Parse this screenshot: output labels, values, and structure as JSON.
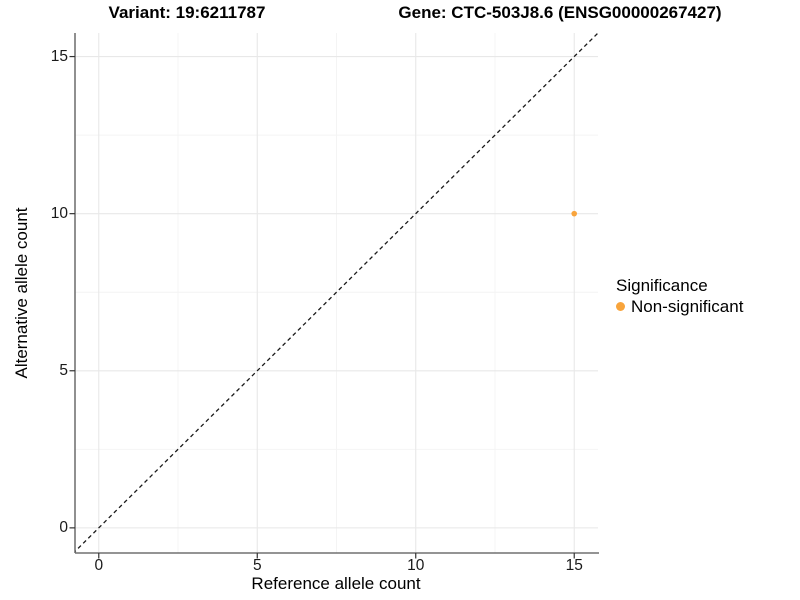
{
  "chart_data": {
    "type": "scatter",
    "titles": [
      "Variant: 19:6211787",
      "Gene: CTC-503J8.6 (ENSG00000267427)"
    ],
    "xlabel": "Reference allele count",
    "ylabel": "Alternative allele count",
    "xticks": [
      0,
      5,
      10,
      15
    ],
    "yticks": [
      0,
      5,
      10,
      15
    ],
    "minor_xticks": [
      2.5,
      7.5,
      12.5
    ],
    "minor_yticks": [
      2.5,
      7.5,
      12.5
    ],
    "xlim": [
      -0.75,
      15.75
    ],
    "ylim": [
      -0.8,
      15.75
    ],
    "grid": true,
    "identity_line": {
      "style": "dashed",
      "slope": 1,
      "intercept": 0,
      "color": "#1a1a1a"
    },
    "series": [
      {
        "name": "Non-significant",
        "color": "#F8A43C",
        "points": [
          [
            15,
            10
          ]
        ],
        "point_radius": 2.8
      }
    ],
    "legend": {
      "title": "Significance",
      "position": "right",
      "entries": [
        {
          "label": "Non-significant",
          "color": "#F8A43C"
        }
      ]
    },
    "colors": {
      "background": "#FFFFFF",
      "grid_major": "#E8E8E8",
      "grid_minor": "#F4F4F4",
      "axis_line": "#555555",
      "tick_mark": "#333333",
      "point": "#F8A43C"
    }
  }
}
